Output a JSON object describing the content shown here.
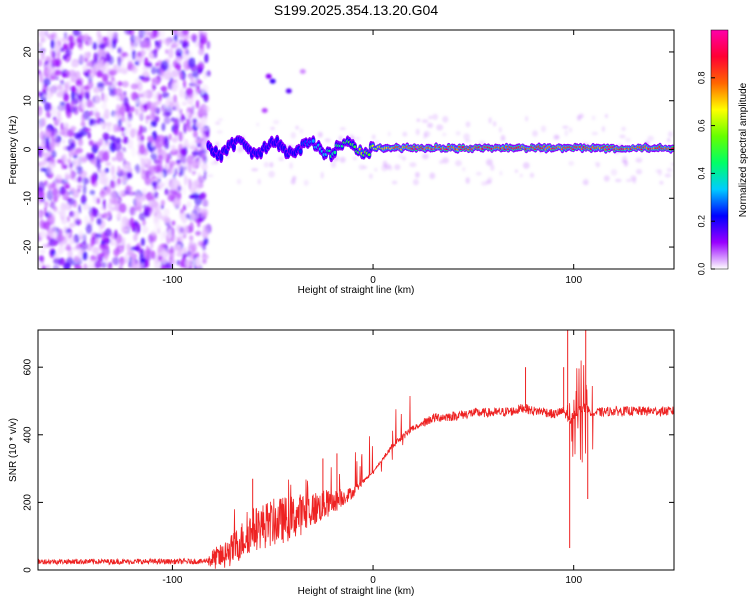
{
  "title": "S199.2025.354.13.20.G04",
  "chart_data": [
    {
      "type": "heatmap",
      "xlabel": "Height of straight line (km)",
      "ylabel": "Frequency (Hz)",
      "xlim": [
        -167,
        150
      ],
      "ylim": [
        -24.5,
        24.5
      ],
      "xticks": [
        -100,
        0,
        100
      ],
      "yticks": [
        -20,
        -10,
        0,
        10,
        20
      ],
      "colorbar": {
        "label": "Normalized spectral amplitude",
        "range": [
          0,
          1
        ],
        "ticks": [
          0.0,
          0.2,
          0.4,
          0.6,
          0.8
        ],
        "tick_labels": [
          "0.0",
          "0.2",
          "0.4",
          "0.6",
          "0.8"
        ],
        "colors": [
          "#ffffff",
          "#9900ff",
          "#0000ff",
          "#00ccff",
          "#00ff66",
          "#66ff00",
          "#ffff00",
          "#ff6600",
          "#ff0033",
          "#ff00aa"
        ]
      },
      "features": {
        "noise_region_x": [
          -167,
          -82
        ],
        "tracked_signal_x": [
          -82,
          150
        ],
        "tracked_signal_frequency": 0.3,
        "tracked_signal_amplitude": [
          0.2,
          0.9
        ]
      }
    },
    {
      "type": "line",
      "xlabel": "Height of straight line (km)",
      "ylabel": "SNR (10 * v/v)",
      "xlim": [
        -167,
        150
      ],
      "ylim": [
        0,
        710
      ],
      "xticks": [
        -100,
        0,
        100
      ],
      "yticks": [
        0,
        200,
        400,
        600
      ],
      "series": [
        {
          "name": "SNR",
          "color": "#ee2222",
          "x": [
            -167,
            -140,
            -110,
            -85,
            -75,
            -70,
            -60,
            -50,
            -40,
            -30,
            -20,
            -10,
            0,
            10,
            20,
            30,
            40,
            50,
            60,
            70,
            75,
            80,
            85,
            90,
            95,
            98,
            100,
            105,
            110,
            120,
            130,
            140,
            150
          ],
          "y": [
            25,
            25,
            25,
            25,
            40,
            60,
            120,
            140,
            155,
            180,
            200,
            230,
            290,
            370,
            420,
            450,
            455,
            465,
            465,
            470,
            480,
            470,
            470,
            460,
            470,
            440,
            460,
            480,
            465,
            470,
            470,
            470,
            470
          ]
        }
      ],
      "features": {
        "spikes": [
          {
            "x": -60,
            "y": 270
          },
          {
            "x": -25,
            "y": 330
          },
          {
            "x": -18,
            "y": 345
          },
          {
            "x": 76,
            "y": 600
          },
          {
            "x": 95,
            "y": 600
          },
          {
            "x": 97,
            "y": 710
          },
          {
            "x": 98,
            "y": 65
          },
          {
            "x": 106,
            "y": 710
          },
          {
            "x": 107,
            "y": 210
          }
        ]
      }
    }
  ]
}
